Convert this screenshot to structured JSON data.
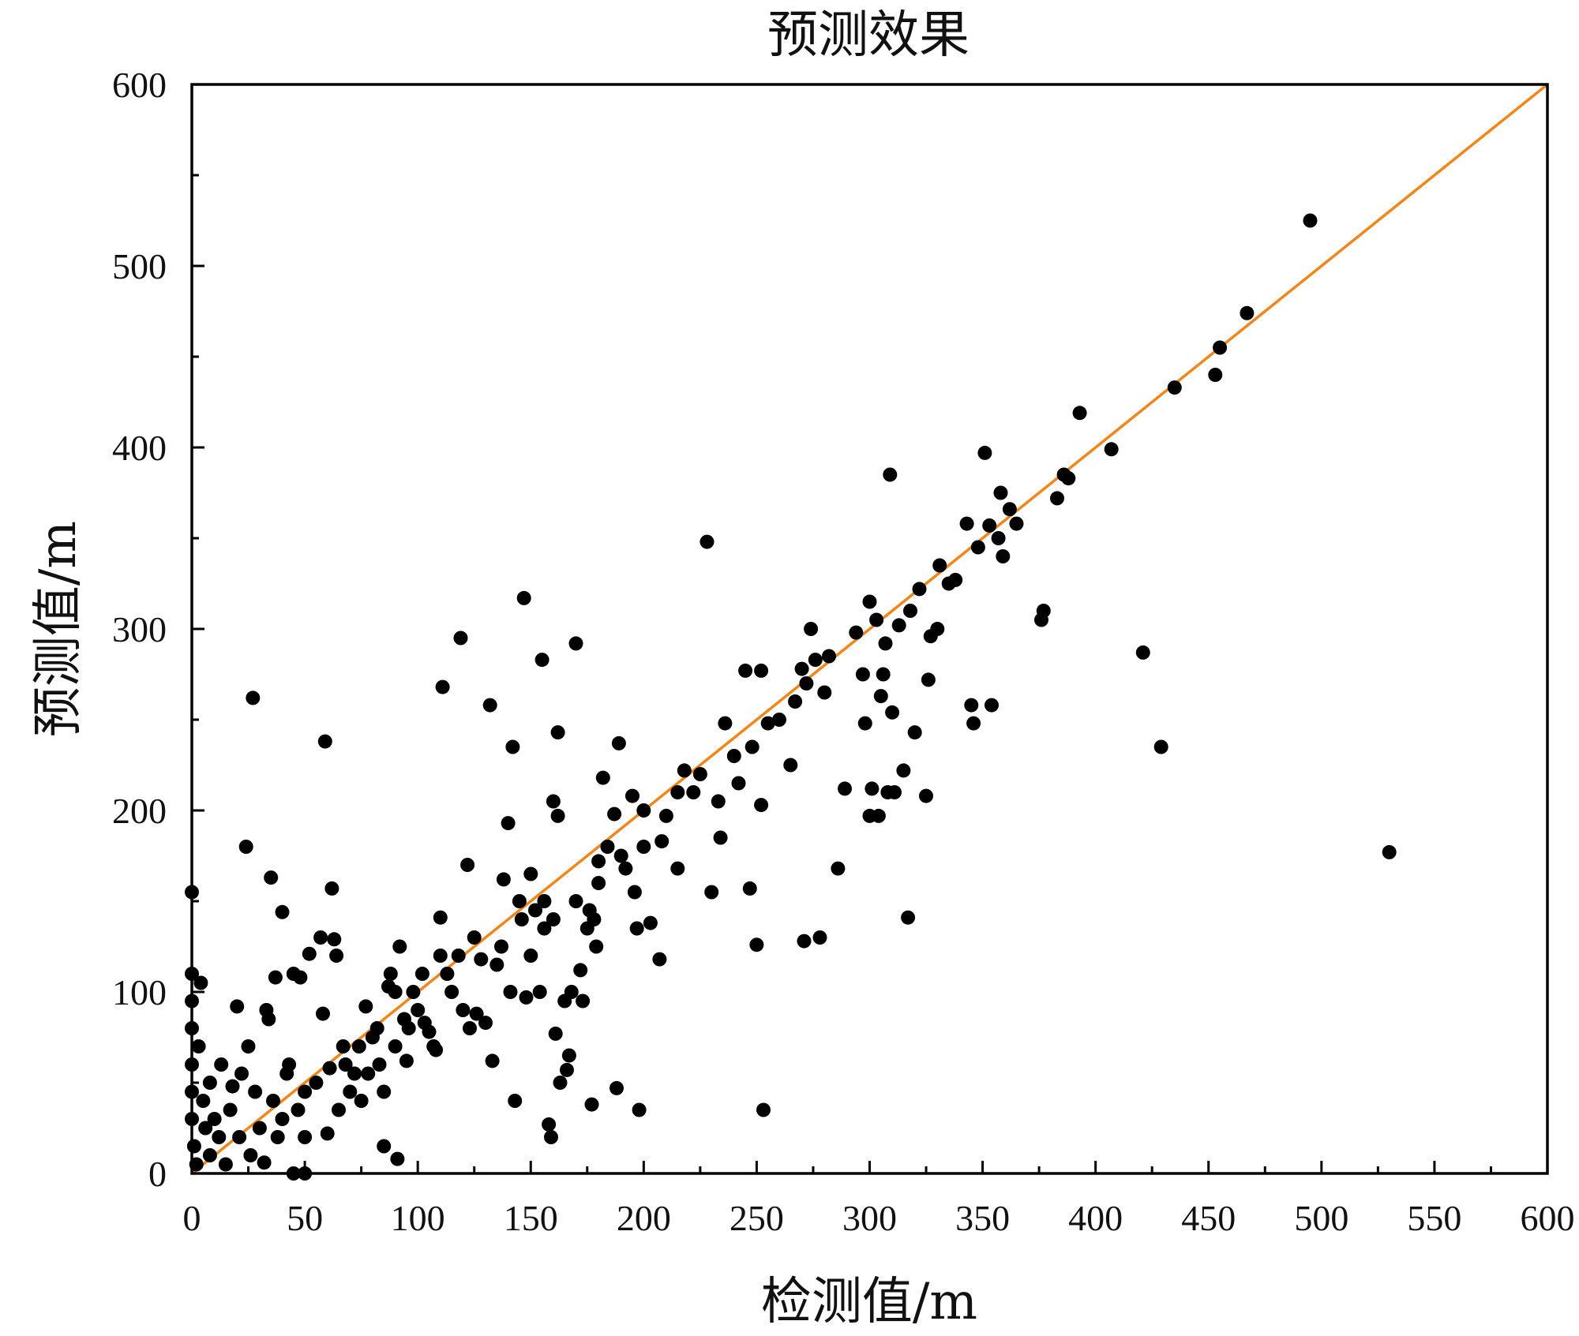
{
  "chart_data": {
    "type": "scatter",
    "title": "预测效果",
    "xlabel": "检测值/m",
    "ylabel": "预测值/m",
    "xlim": [
      0,
      600
    ],
    "ylim": [
      0,
      600
    ],
    "x_ticks": [
      0,
      50,
      100,
      150,
      200,
      250,
      300,
      350,
      400,
      450,
      500,
      550,
      600
    ],
    "y_ticks": [
      0,
      100,
      200,
      300,
      400,
      500,
      600
    ],
    "grid": false,
    "colors": {
      "points": "#000000",
      "reference_line": "#f0861c"
    },
    "reference_line": {
      "from": [
        0,
        0
      ],
      "to": [
        600,
        600
      ]
    },
    "series": [
      {
        "points": [
          [
            0,
            155
          ],
          [
            0,
            110
          ],
          [
            0,
            95
          ],
          [
            0,
            80
          ],
          [
            0,
            60
          ],
          [
            0,
            45
          ],
          [
            0,
            30
          ],
          [
            1,
            15
          ],
          [
            2,
            5
          ],
          [
            3,
            70
          ],
          [
            4,
            105
          ],
          [
            5,
            40
          ],
          [
            6,
            25
          ],
          [
            8,
            50
          ],
          [
            8,
            10
          ],
          [
            10,
            30
          ],
          [
            12,
            20
          ],
          [
            13,
            60
          ],
          [
            15,
            5
          ],
          [
            17,
            35
          ],
          [
            18,
            48
          ],
          [
            20,
            92
          ],
          [
            21,
            20
          ],
          [
            22,
            55
          ],
          [
            24,
            180
          ],
          [
            25,
            70
          ],
          [
            26,
            10
          ],
          [
            27,
            262
          ],
          [
            28,
            45
          ],
          [
            30,
            25
          ],
          [
            32,
            6
          ],
          [
            33,
            90
          ],
          [
            34,
            85
          ],
          [
            35,
            163
          ],
          [
            36,
            40
          ],
          [
            37,
            108
          ],
          [
            38,
            20
          ],
          [
            40,
            144
          ],
          [
            40,
            30
          ],
          [
            42,
            55
          ],
          [
            43,
            60
          ],
          [
            45,
            110
          ],
          [
            45,
            0
          ],
          [
            47,
            35
          ],
          [
            48,
            108
          ],
          [
            50,
            0
          ],
          [
            50,
            20
          ],
          [
            50,
            45
          ],
          [
            52,
            121
          ],
          [
            55,
            50
          ],
          [
            57,
            130
          ],
          [
            58,
            88
          ],
          [
            59,
            238
          ],
          [
            60,
            22
          ],
          [
            61,
            58
          ],
          [
            62,
            157
          ],
          [
            63,
            129
          ],
          [
            64,
            120
          ],
          [
            65,
            35
          ],
          [
            67,
            70
          ],
          [
            68,
            60
          ],
          [
            70,
            45
          ],
          [
            72,
            55
          ],
          [
            74,
            70
          ],
          [
            75,
            40
          ],
          [
            77,
            92
          ],
          [
            78,
            55
          ],
          [
            80,
            75
          ],
          [
            82,
            80
          ],
          [
            83,
            60
          ],
          [
            85,
            15
          ],
          [
            85,
            45
          ],
          [
            87,
            103
          ],
          [
            88,
            110
          ],
          [
            90,
            70
          ],
          [
            90,
            100
          ],
          [
            91,
            8
          ],
          [
            92,
            125
          ],
          [
            94,
            85
          ],
          [
            95,
            62
          ],
          [
            96,
            80
          ],
          [
            98,
            100
          ],
          [
            100,
            90
          ],
          [
            102,
            110
          ],
          [
            103,
            83
          ],
          [
            105,
            78
          ],
          [
            107,
            70
          ],
          [
            108,
            68
          ],
          [
            110,
            120
          ],
          [
            110,
            141
          ],
          [
            111,
            268
          ],
          [
            113,
            110
          ],
          [
            115,
            100
          ],
          [
            118,
            120
          ],
          [
            119,
            295
          ],
          [
            120,
            90
          ],
          [
            122,
            170
          ],
          [
            123,
            80
          ],
          [
            125,
            130
          ],
          [
            126,
            88
          ],
          [
            128,
            118
          ],
          [
            130,
            83
          ],
          [
            132,
            258
          ],
          [
            133,
            62
          ],
          [
            135,
            115
          ],
          [
            137,
            125
          ],
          [
            138,
            162
          ],
          [
            140,
            193
          ],
          [
            141,
            100
          ],
          [
            142,
            235
          ],
          [
            143,
            40
          ],
          [
            145,
            150
          ],
          [
            146,
            140
          ],
          [
            147,
            317
          ],
          [
            148,
            97
          ],
          [
            150,
            165
          ],
          [
            150,
            120
          ],
          [
            152,
            145
          ],
          [
            154,
            100
          ],
          [
            155,
            283
          ],
          [
            156,
            150
          ],
          [
            156,
            135
          ],
          [
            158,
            27
          ],
          [
            159,
            20
          ],
          [
            160,
            205
          ],
          [
            160,
            140
          ],
          [
            161,
            77
          ],
          [
            162,
            243
          ],
          [
            162,
            197
          ],
          [
            163,
            50
          ],
          [
            165,
            95
          ],
          [
            166,
            57
          ],
          [
            167,
            65
          ],
          [
            168,
            100
          ],
          [
            170,
            292
          ],
          [
            170,
            150
          ],
          [
            172,
            112
          ],
          [
            173,
            95
          ],
          [
            175,
            135
          ],
          [
            176,
            145
          ],
          [
            177,
            38
          ],
          [
            178,
            140
          ],
          [
            179,
            125
          ],
          [
            180,
            172
          ],
          [
            180,
            160
          ],
          [
            182,
            218
          ],
          [
            184,
            180
          ],
          [
            187,
            198
          ],
          [
            188,
            47
          ],
          [
            189,
            237
          ],
          [
            190,
            175
          ],
          [
            192,
            168
          ],
          [
            195,
            208
          ],
          [
            196,
            155
          ],
          [
            197,
            135
          ],
          [
            198,
            35
          ],
          [
            200,
            180
          ],
          [
            200,
            200
          ],
          [
            203,
            138
          ],
          [
            207,
            118
          ],
          [
            208,
            183
          ],
          [
            210,
            197
          ],
          [
            215,
            168
          ],
          [
            215,
            210
          ],
          [
            218,
            222
          ],
          [
            222,
            210
          ],
          [
            225,
            220
          ],
          [
            228,
            348
          ],
          [
            230,
            155
          ],
          [
            233,
            205
          ],
          [
            234,
            185
          ],
          [
            236,
            248
          ],
          [
            240,
            230
          ],
          [
            242,
            215
          ],
          [
            245,
            277
          ],
          [
            247,
            157
          ],
          [
            248,
            235
          ],
          [
            250,
            126
          ],
          [
            252,
            203
          ],
          [
            252,
            277
          ],
          [
            253,
            35
          ],
          [
            255,
            248
          ],
          [
            260,
            250
          ],
          [
            265,
            225
          ],
          [
            267,
            260
          ],
          [
            270,
            278
          ],
          [
            271,
            128
          ],
          [
            272,
            270
          ],
          [
            274,
            300
          ],
          [
            276,
            283
          ],
          [
            278,
            130
          ],
          [
            280,
            265
          ],
          [
            282,
            285
          ],
          [
            286,
            168
          ],
          [
            289,
            212
          ],
          [
            294,
            298
          ],
          [
            297,
            275
          ],
          [
            298,
            248
          ],
          [
            300,
            197
          ],
          [
            300,
            315
          ],
          [
            301,
            212
          ],
          [
            303,
            305
          ],
          [
            304,
            197
          ],
          [
            305,
            263
          ],
          [
            306,
            275
          ],
          [
            307,
            292
          ],
          [
            308,
            210
          ],
          [
            309,
            385
          ],
          [
            310,
            254
          ],
          [
            311,
            210
          ],
          [
            313,
            302
          ],
          [
            315,
            222
          ],
          [
            317,
            141
          ],
          [
            318,
            310
          ],
          [
            320,
            243
          ],
          [
            322,
            322
          ],
          [
            325,
            208
          ],
          [
            326,
            272
          ],
          [
            327,
            296
          ],
          [
            330,
            300
          ],
          [
            331,
            335
          ],
          [
            335,
            325
          ],
          [
            338,
            327
          ],
          [
            343,
            358
          ],
          [
            345,
            258
          ],
          [
            346,
            248
          ],
          [
            348,
            345
          ],
          [
            351,
            397
          ],
          [
            353,
            357
          ],
          [
            354,
            258
          ],
          [
            357,
            350
          ],
          [
            358,
            375
          ],
          [
            359,
            340
          ],
          [
            362,
            366
          ],
          [
            365,
            358
          ],
          [
            376,
            305
          ],
          [
            377,
            310
          ],
          [
            383,
            372
          ],
          [
            386,
            385
          ],
          [
            388,
            383
          ],
          [
            393,
            419
          ],
          [
            407,
            399
          ],
          [
            421,
            287
          ],
          [
            429,
            235
          ],
          [
            435,
            433
          ],
          [
            453,
            440
          ],
          [
            455,
            455
          ],
          [
            467,
            474
          ],
          [
            495,
            525
          ],
          [
            530,
            177
          ]
        ]
      }
    ]
  }
}
